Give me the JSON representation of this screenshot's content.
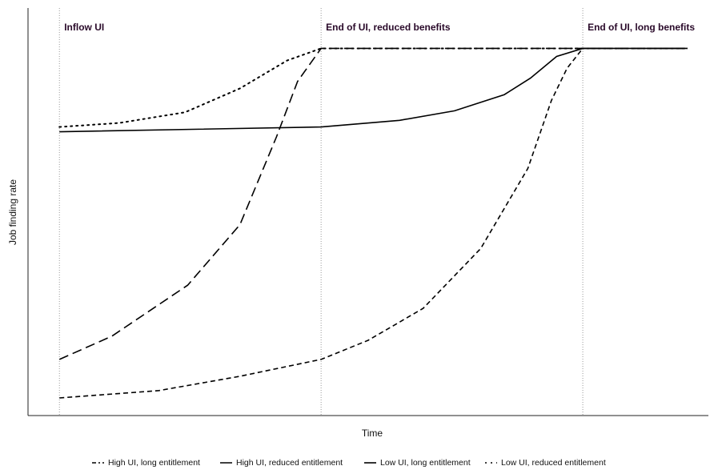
{
  "chart_data": {
    "type": "line",
    "xlabel": "Time",
    "ylabel": "Job finding rate",
    "xlim": [
      -0.12,
      2.48
    ],
    "ylim": [
      0,
      111
    ],
    "annotations": [
      {
        "x": 0,
        "text": "Inflow UI"
      },
      {
        "x": 1,
        "text": "End of UI, reduced benefits"
      },
      {
        "x": 2,
        "text": "End of UI, long benefits"
      }
    ],
    "series": [
      {
        "name": "High UI, long entitlement",
        "color": "#000000",
        "linestyle": "dashed",
        "x": [
          0,
          0.38,
          0.69,
          1,
          1.18,
          1.39,
          1.61,
          1.79,
          1.88,
          1.94,
          2,
          2.4
        ],
        "values": [
          4.8,
          6.8,
          10.7,
          15.3,
          20.5,
          29.2,
          45.5,
          67.3,
          85.8,
          94.6,
          100,
          100
        ]
      },
      {
        "name": "High UI, reduced entitlement",
        "color": "#000000",
        "linestyle": "longdash",
        "x": [
          0,
          0.2,
          0.49,
          0.69,
          0.83,
          0.91,
          1,
          2,
          2.4
        ],
        "values": [
          15.3,
          21.6,
          35.5,
          52,
          76,
          91,
          100,
          100,
          100
        ]
      },
      {
        "name": "Low UI, long entitlement",
        "color": "#000000",
        "linestyle": "solid",
        "x": [
          0,
          1,
          1.3,
          1.51,
          1.7,
          1.8,
          1.9,
          2,
          2.4
        ],
        "values": [
          77.3,
          78.6,
          80.4,
          83,
          87.4,
          91.9,
          97.8,
          100,
          100
        ]
      },
      {
        "name": "Low UI, reduced entitlement",
        "color": "#000000",
        "linestyle": "dotted",
        "x": [
          0,
          0.23,
          0.48,
          0.69,
          0.87,
          1,
          2,
          2.4
        ],
        "values": [
          78.6,
          79.7,
          82.6,
          89.1,
          96.7,
          100,
          100,
          100
        ]
      }
    ]
  }
}
